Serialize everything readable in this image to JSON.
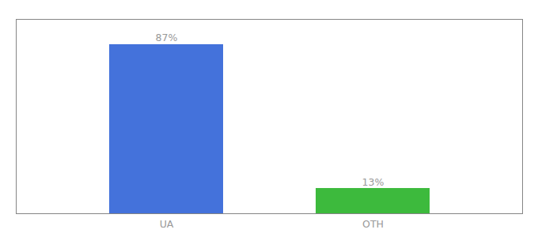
{
  "chart_data": {
    "type": "bar",
    "categories": [
      "UA",
      "OTH"
    ],
    "values": [
      87,
      13
    ],
    "value_labels": [
      "87%",
      "13%"
    ],
    "colors": [
      "#4472db",
      "#3dba3d"
    ],
    "ylim": [
      0,
      100
    ],
    "grid": false,
    "data_labels": true,
    "tick_labels": "x"
  }
}
